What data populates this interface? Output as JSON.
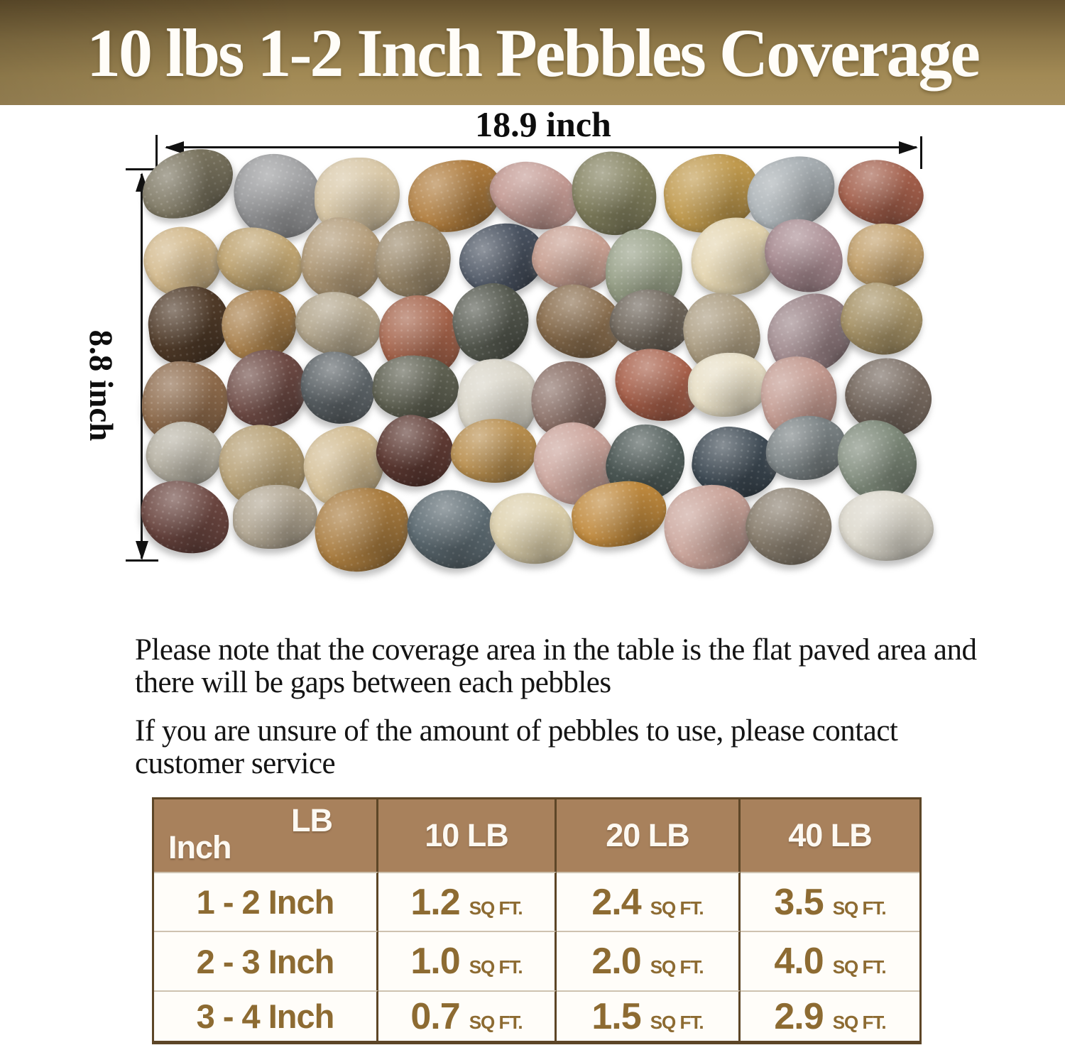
{
  "banner": {
    "title": "10 lbs 1-2 Inch Pebbles Coverage",
    "bg_top": "#63502d",
    "bg_bottom": "#a78f5c",
    "text_color": "#ffffff"
  },
  "diagram": {
    "width_label": "18.9 inch",
    "height_label": "8.8 inch",
    "pebble_rows": [
      [
        "#7b7560",
        "#9a9b9d",
        "#d8c7a6",
        "#b07d3e",
        "#c49b94",
        "#83815f",
        "#c09a4e",
        "#a9b0b4",
        "#a35f4b"
      ],
      [
        "#d2b88a",
        "#c0a572",
        "#b29b78",
        "#9d8b6d",
        "#4a5361",
        "#c9a193",
        "#97a087",
        "#e4d5b0",
        "#a98c92",
        "#c2a06b"
      ],
      [
        "#4f3a28",
        "#a87f4a",
        "#b3a68c",
        "#a5634a",
        "#55594f",
        "#8a6e4e",
        "#6e655a",
        "#ab9c80",
        "#9b8488",
        "#a89468"
      ],
      [
        "#8d6a4b",
        "#6d4a44",
        "#5d6468",
        "#5f6152",
        "#d9d5c8",
        "#8a6f66",
        "#a8604a",
        "#e8dfc6",
        "#c39a90",
        "#75685e"
      ],
      [
        "#b9b4a6",
        "#b59e72",
        "#d3bd93",
        "#5e3a33",
        "#b98f4f",
        "#cba49b",
        "#4e5a57",
        "#3e4a54",
        "#7a8284",
        "#7e8a7a"
      ],
      [
        "#6b4640",
        "#b3a894",
        "#a97c3f",
        "#5d6b72",
        "#ddd0ac",
        "#c08a3e",
        "#caa49a",
        "#8b8070",
        "#dcd8cc"
      ]
    ]
  },
  "notes": {
    "para1": "Please note that the coverage area in the table is the flat paved area and there will be gaps between each pebbles",
    "para2": "If you are unsure of the amount of pebbles to use, please contact customer service"
  },
  "coverage_table": {
    "corner_top_right": "LB",
    "corner_bottom_left": "Inch",
    "col_headers": [
      "10 LB",
      "20 LB",
      "40 LB"
    ],
    "rows": [
      {
        "label": "1 - 2 Inch",
        "cells": [
          {
            "value": "1.2",
            "unit": "SQ FT."
          },
          {
            "value": "2.4",
            "unit": "SQ FT."
          },
          {
            "value": "3.5",
            "unit": "SQ FT."
          }
        ]
      },
      {
        "label": "2 - 3 Inch",
        "cells": [
          {
            "value": "1.0",
            "unit": "SQ FT."
          },
          {
            "value": "2.0",
            "unit": "SQ FT."
          },
          {
            "value": "4.0",
            "unit": "SQ FT."
          }
        ]
      },
      {
        "label": "3 - 4 Inch",
        "cells": [
          {
            "value": "0.7",
            "unit": "SQ FT."
          },
          {
            "value": "1.5",
            "unit": "SQ FT."
          },
          {
            "value": "2.9",
            "unit": "SQ FT."
          }
        ]
      }
    ],
    "header_bg": "#a8815c",
    "line_color": "#5d4627",
    "text_color": "#8d6b32"
  }
}
